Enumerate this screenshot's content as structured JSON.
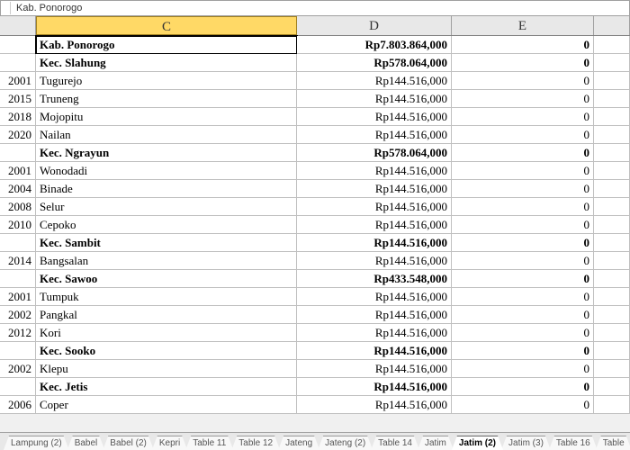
{
  "name_box": {
    "ref_hint": "",
    "value": "Kab.  Ponorogo"
  },
  "columns": [
    {
      "key": "stub",
      "label": "",
      "width": "wB",
      "selected": false
    },
    {
      "key": "C",
      "label": "C",
      "width": "wC",
      "selected": true
    },
    {
      "key": "D",
      "label": "D",
      "width": "wD",
      "selected": false
    },
    {
      "key": "E",
      "label": "E",
      "width": "wE",
      "selected": false
    },
    {
      "key": "F",
      "label": "",
      "width": "wF",
      "selected": false
    }
  ],
  "rows": [
    {
      "b": "",
      "c": "Kab.  Ponorogo",
      "d": "Rp7.803.864,000",
      "e": "0",
      "bold": true,
      "active": true
    },
    {
      "b": "",
      "c": "Kec.  Slahung",
      "d": "Rp578.064,000",
      "e": "0",
      "bold": true
    },
    {
      "b": "2001",
      "c": "Tugurejo",
      "d": "Rp144.516,000",
      "e": "0"
    },
    {
      "b": "2015",
      "c": "Truneng",
      "d": "Rp144.516,000",
      "e": "0"
    },
    {
      "b": "2018",
      "c": "Mojopitu",
      "d": "Rp144.516,000",
      "e": "0"
    },
    {
      "b": "2020",
      "c": "Nailan",
      "d": "Rp144.516,000",
      "e": "0"
    },
    {
      "b": "",
      "c": "Kec.  Ngrayun",
      "d": "Rp578.064,000",
      "e": "0",
      "bold": true
    },
    {
      "b": "2001",
      "c": "Wonodadi",
      "d": "Rp144.516,000",
      "e": "0"
    },
    {
      "b": "2004",
      "c": "Binade",
      "d": "Rp144.516,000",
      "e": "0"
    },
    {
      "b": "2008",
      "c": "Selur",
      "d": "Rp144.516,000",
      "e": "0"
    },
    {
      "b": "2010",
      "c": "Cepoko",
      "d": "Rp144.516,000",
      "e": "0"
    },
    {
      "b": "",
      "c": "Kec.  Sambit",
      "d": "Rp144.516,000",
      "e": "0",
      "bold": true
    },
    {
      "b": "2014",
      "c": "Bangsalan",
      "d": "Rp144.516,000",
      "e": "0"
    },
    {
      "b": "",
      "c": "Kec.  Sawoo",
      "d": "Rp433.548,000",
      "e": "0",
      "bold": true
    },
    {
      "b": "2001",
      "c": "Tumpuk",
      "d": "Rp144.516,000",
      "e": "0"
    },
    {
      "b": "2002",
      "c": "Pangkal",
      "d": "Rp144.516,000",
      "e": "0"
    },
    {
      "b": "2012",
      "c": "Kori",
      "d": "Rp144.516,000",
      "e": "0"
    },
    {
      "b": "",
      "c": "Kec.  Sooko",
      "d": "Rp144.516,000",
      "e": "0",
      "bold": true
    },
    {
      "b": "2002",
      "c": "Klepu",
      "d": "Rp144.516,000",
      "e": "0"
    },
    {
      "b": "",
      "c": "Kec.  Jetis",
      "d": "Rp144.516,000",
      "e": "0",
      "bold": true
    },
    {
      "b": "2006",
      "c": "Coper",
      "d": "Rp144.516,000",
      "e": "0"
    }
  ],
  "tabs": [
    {
      "label": "Lampung (2)"
    },
    {
      "label": "Babel"
    },
    {
      "label": "Babel (2)"
    },
    {
      "label": "Kepri"
    },
    {
      "label": "Table 11"
    },
    {
      "label": "Table 12"
    },
    {
      "label": "Jateng"
    },
    {
      "label": "Jateng (2)"
    },
    {
      "label": "Table 14"
    },
    {
      "label": "Jatim"
    },
    {
      "label": "Jatim (2)",
      "active": true
    },
    {
      "label": "Jatim (3)"
    },
    {
      "label": "Table 16"
    },
    {
      "label": "Table"
    }
  ],
  "colors": {
    "selected_col_header_bg": "#ffd966",
    "header_bg": "#e8e8e8",
    "grid_border": "#c0c0c0",
    "cell_bg": "#ffffff",
    "active_outline": "#000000"
  }
}
